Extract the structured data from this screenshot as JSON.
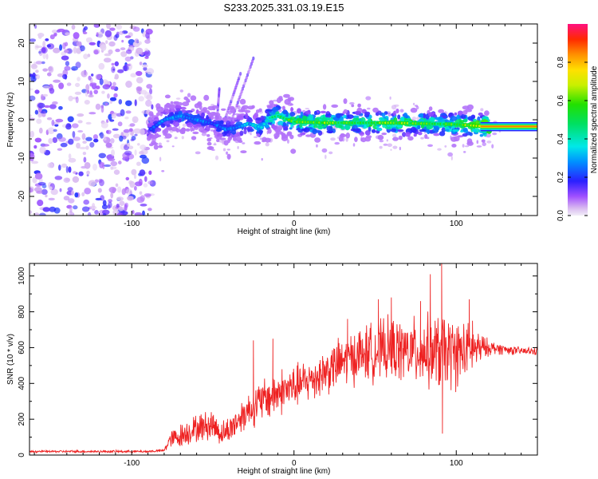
{
  "title": "S233.2025.331.03.19.E15",
  "chart_data": [
    {
      "type": "heatmap",
      "name": "spectrogram",
      "xlabel": "Height of straight line (km)",
      "ylabel": "Frequency (Hz)",
      "xlim": [
        -163,
        150
      ],
      "ylim": [
        -25,
        25
      ],
      "xticks": [
        -100,
        0,
        100
      ],
      "xtick_labels": [
        "-100",
        "0",
        "100"
      ],
      "yticks": [
        -20,
        -10,
        0,
        10,
        20
      ],
      "ytick_labels": [
        "-20",
        "-10",
        "0",
        "10",
        "20"
      ],
      "colorbar": {
        "label": "Normalized spectral amplitude",
        "range": [
          0,
          1
        ],
        "ticks": [
          0.0,
          0.2,
          0.4,
          0.6,
          0.8
        ],
        "tick_labels": [
          "0.0",
          "0.2",
          "0.4",
          "0.6",
          "0.8"
        ]
      },
      "noise_region_x": [
        -163,
        -90
      ],
      "ridge": {
        "x": [
          -90,
          -80,
          -70,
          -60,
          -50,
          -42,
          -35,
          -28,
          -20,
          -15,
          -10,
          0,
          20,
          40,
          60,
          80,
          100,
          110,
          120,
          150
        ],
        "y": [
          -3,
          0,
          1,
          0,
          -1,
          -2.5,
          -2,
          -1,
          -2,
          0.5,
          1,
          -0.5,
          -0.8,
          -0.8,
          -0.8,
          -1,
          -1.2,
          -1.5,
          -1.8,
          -1.8
        ],
        "peak_amplitude": [
          0.2,
          0.3,
          0.3,
          0.3,
          0.25,
          0.3,
          0.3,
          0.35,
          0.4,
          0.5,
          0.55,
          0.6,
          0.65,
          0.6,
          0.65,
          0.6,
          0.6,
          0.7,
          0.9,
          0.95
        ]
      }
    },
    {
      "type": "line",
      "name": "snr",
      "xlabel": "Height of straight line (km)",
      "ylabel": "SNR (10 * v/v)",
      "xlim": [
        -163,
        150
      ],
      "ylim": [
        0,
        1070
      ],
      "xticks": [
        -100,
        0,
        100
      ],
      "xtick_labels": [
        "-100",
        "0",
        "100"
      ],
      "yticks": [
        0,
        200,
        400,
        600,
        800,
        1000
      ],
      "ytick_labels": [
        "0",
        "200",
        "400",
        "600",
        "800",
        "1000"
      ],
      "series": [
        {
          "name": "SNR",
          "color": "#ee2222",
          "envelope": {
            "x": [
              -163,
              -90,
              -80,
              -77,
              -72,
              -60,
              -50,
              -45,
              -40,
              -30,
              -20,
              -10,
              0,
              10,
              20,
              30,
              40,
              50,
              60,
              70,
              80,
              90,
              100,
              110,
              120,
              130,
              140,
              150
            ],
            "mean": [
              20,
              20,
              25,
              80,
              100,
              150,
              170,
              120,
              140,
              240,
              300,
              350,
              380,
              420,
              470,
              520,
              560,
              580,
              590,
              580,
              580,
              570,
              570,
              590,
              600,
              590,
              580,
              580
            ],
            "amp": [
              6,
              6,
              8,
              40,
              60,
              70,
              80,
              60,
              70,
              90,
              110,
              120,
              110,
              110,
              120,
              130,
              140,
              150,
              160,
              160,
              180,
              200,
              180,
              120,
              40,
              25,
              20,
              20
            ]
          },
          "peaks": [
            {
              "x": -25,
              "y": 640
            },
            {
              "x": -13,
              "y": 650
            },
            {
              "x": 33,
              "y": 760
            },
            {
              "x": 52,
              "y": 870
            },
            {
              "x": 60,
              "y": 880
            },
            {
              "x": 78,
              "y": 860
            },
            {
              "x": 84,
              "y": 1010
            },
            {
              "x": 91,
              "y": 1070
            },
            {
              "x": 91.5,
              "y": 120
            },
            {
              "x": 108,
              "y": 870
            },
            {
              "x": 110,
              "y": 750
            }
          ]
        }
      ]
    }
  ]
}
